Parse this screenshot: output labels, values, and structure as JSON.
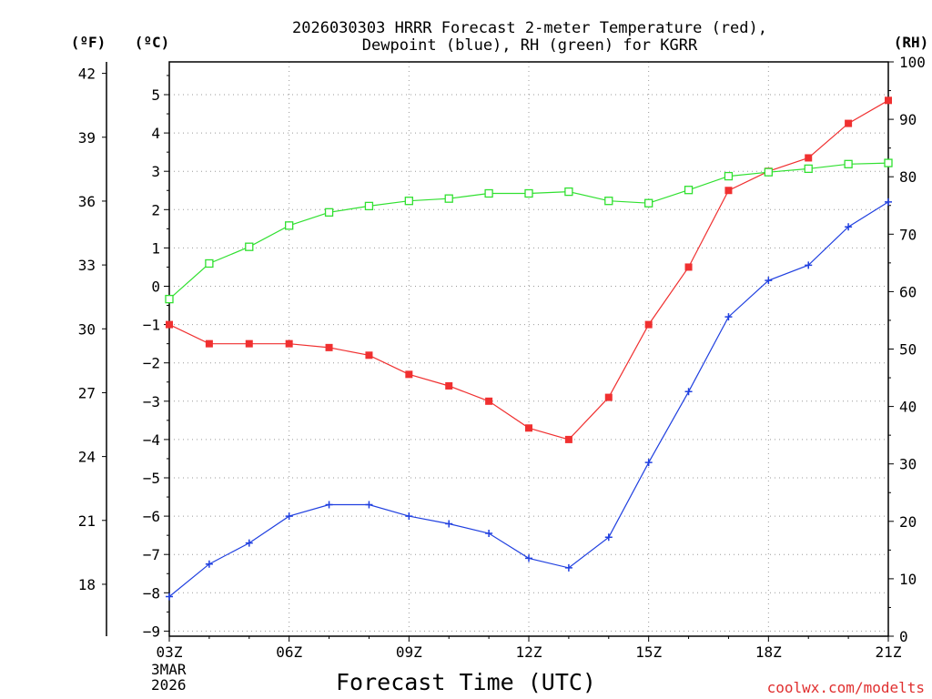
{
  "chart_data": {
    "type": "line",
    "title_line1": "2026030303 HRRR Forecast 2-meter Temperature (red),",
    "title_line2": "Dewpoint (blue), RH (green) for KGRR",
    "units": {
      "fahrenheit": "(ºF)",
      "celsius": "(ºC)",
      "rh": "(RH)"
    },
    "xlabel": "Forecast Time (UTC)",
    "x_tick_labels": [
      "03Z",
      "06Z",
      "09Z",
      "12Z",
      "15Z",
      "18Z",
      "21Z"
    ],
    "x_tick_hours": [
      3,
      6,
      9,
      12,
      15,
      18,
      21
    ],
    "date_label_line1": "3MAR",
    "date_label_line2": "2026",
    "credit": "coolwx.com/modelts",
    "x_hours": [
      3,
      4,
      5,
      6,
      7,
      8,
      9,
      10,
      11,
      12,
      13,
      14,
      15,
      16,
      17,
      18,
      19,
      20,
      21
    ],
    "celsius_axis": {
      "ylim": [
        -9,
        5.8
      ],
      "ticks": [
        "5",
        "4",
        "3",
        "2",
        "1",
        "0",
        "−1",
        "−2",
        "−3",
        "−4",
        "−5",
        "−6",
        "−7",
        "−8",
        "−9"
      ],
      "tick_values": [
        5,
        4,
        3,
        2,
        1,
        0,
        -1,
        -2,
        -3,
        -4,
        -5,
        -6,
        -7,
        -8,
        -9
      ]
    },
    "fahrenheit_axis": {
      "ticks": [
        "42",
        "39",
        "36",
        "33",
        "30",
        "27",
        "24",
        "21",
        "18"
      ],
      "tick_values": [
        42,
        39,
        36,
        33,
        30,
        27,
        24,
        21,
        18
      ]
    },
    "rh_axis": {
      "ylim": [
        0,
        100
      ],
      "ticks": [
        "100",
        "90",
        "80",
        "70",
        "60",
        "50",
        "40",
        "30",
        "20",
        "10",
        "0"
      ],
      "tick_values": [
        100,
        90,
        80,
        70,
        60,
        50,
        40,
        30,
        20,
        10,
        0
      ]
    },
    "series": [
      {
        "name": "Temperature",
        "units": "C",
        "color": "#f03030",
        "marker": "square-filled",
        "values": [
          -1.0,
          -1.5,
          -1.5,
          -1.5,
          -1.6,
          -1.8,
          -2.3,
          -2.6,
          -3.0,
          -3.7,
          -4.0,
          -2.9,
          -1.0,
          0.5,
          2.5,
          3.0,
          3.35,
          4.25,
          4.85
        ]
      },
      {
        "name": "Dewpoint",
        "units": "C",
        "color": "#2040e0",
        "marker": "plus",
        "values": [
          -8.1,
          -7.25,
          -6.7,
          -6.0,
          -5.7,
          -5.7,
          -6.0,
          -6.2,
          -6.45,
          -7.1,
          -7.35,
          -6.55,
          -4.6,
          -2.75,
          -0.8,
          0.15,
          0.55,
          1.55,
          2.2
        ]
      },
      {
        "name": "RH",
        "units": "%",
        "color": "#30e030",
        "marker": "square-open",
        "values": [
          58.7,
          64.9,
          67.8,
          71.5,
          73.8,
          74.9,
          75.8,
          76.2,
          77.1,
          77.1,
          77.4,
          75.8,
          75.4,
          77.7,
          80.1,
          80.8,
          81.4,
          82.2,
          82.4
        ]
      }
    ]
  }
}
